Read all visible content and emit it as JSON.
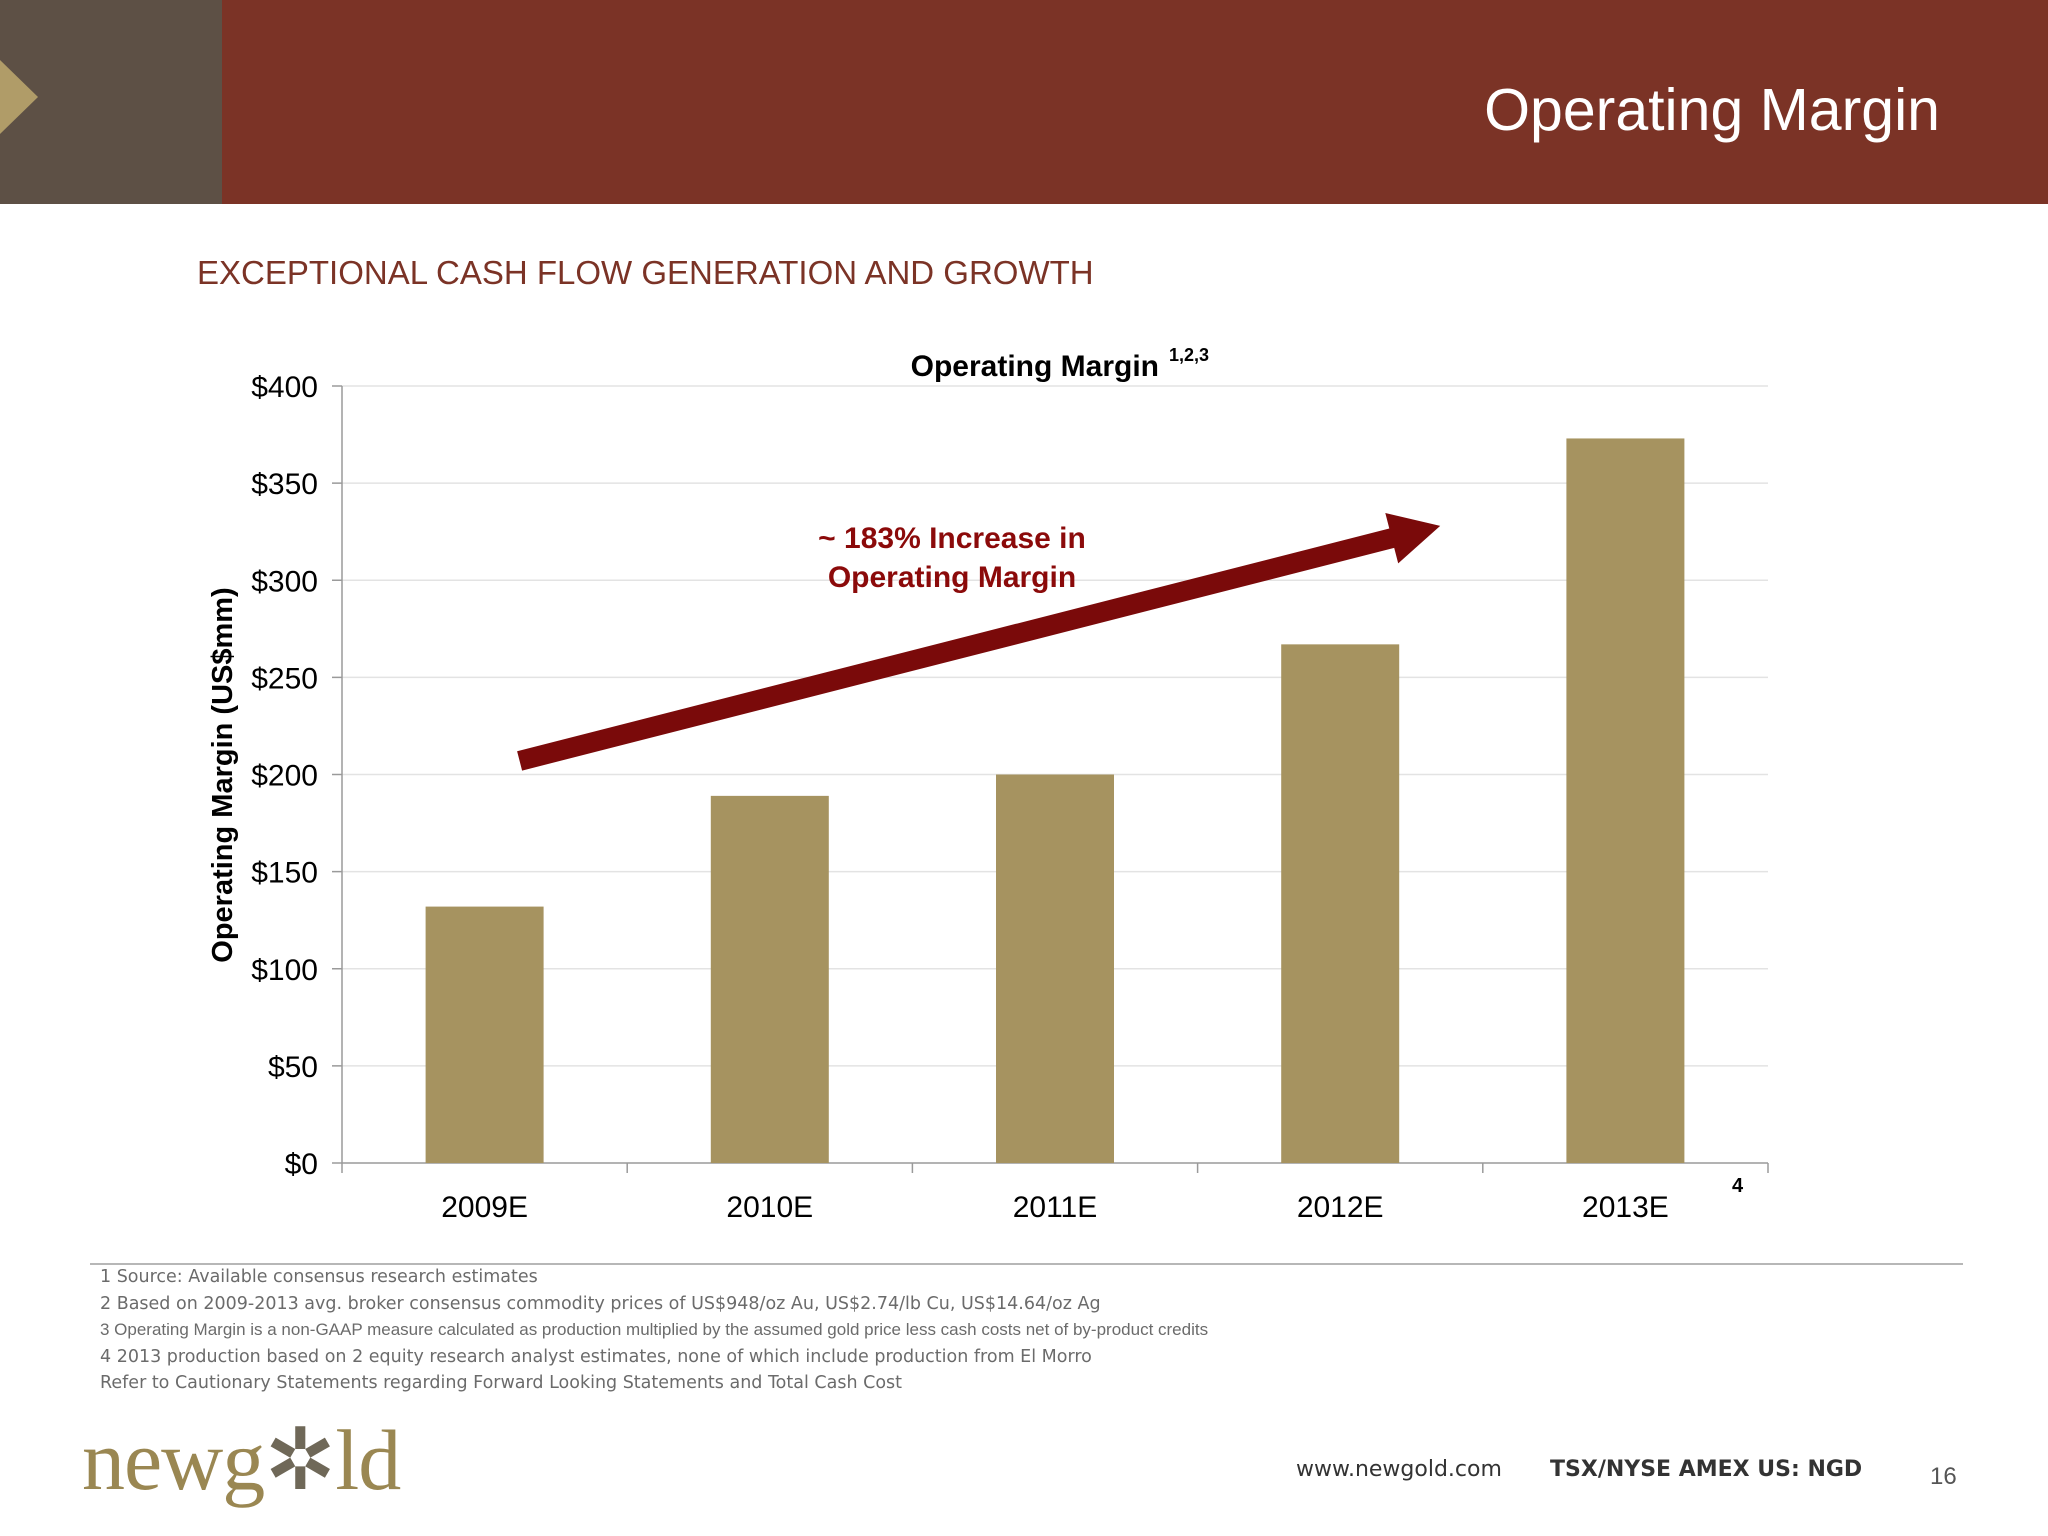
{
  "slide": {
    "title": "Operating Margin",
    "subtitle": "EXCEPTIONAL CASH FLOW GENERATION AND GROWTH",
    "page_number": "16"
  },
  "colors": {
    "header": "#7b3326",
    "header_left": "#5d5045",
    "bar": "#a69360",
    "arrow": "#7a0a0a",
    "annotation": "#8b0a0a"
  },
  "chart_data": {
    "type": "bar",
    "title": "Operating Margin",
    "title_superscript": "1,2,3",
    "ylabel": "Operating Margin (US$mm)",
    "xlabel": "",
    "ylim": [
      0,
      400
    ],
    "yticks": [
      0,
      50,
      100,
      150,
      200,
      250,
      300,
      350,
      400
    ],
    "ytick_labels": [
      "$0",
      "$50",
      "$100",
      "$150",
      "$200",
      "$250",
      "$300",
      "$350",
      "$400"
    ],
    "categories": [
      "2009E",
      "2010E",
      "2011E",
      "2012E",
      "2013E"
    ],
    "values": [
      132,
      189,
      200,
      267,
      373
    ],
    "last_category_superscript": "4",
    "grid": true,
    "legend": "none",
    "annotation": {
      "line1": "~ 183% Increase in",
      "line2": "Operating Margin",
      "arrow_from": {
        "category": "2009E",
        "value": 207
      },
      "arrow_to": {
        "category": "2012E",
        "value": 328
      }
    }
  },
  "footnotes": [
    "1  Source: Available consensus research estimates",
    "2  Based on 2009-2013 avg. broker consensus commodity prices of US$948/oz Au, US$2.74/lb Cu, US$14.64/oz Ag",
    "3  Operating Margin is a non-GAAP measure calculated as production multiplied by the assumed gold price less cash costs net of by-product credits",
    "4  2013 production based on 2 equity research analyst estimates, none of which include production from El Morro",
    "Refer to Cautionary Statements regarding Forward Looking Statements and Total Cash Cost"
  ],
  "footer": {
    "logo_text_a": "newg",
    "logo_text_b": "✲",
    "logo_text_c": "ld",
    "website": "www.newgold.com",
    "ticker": "TSX/NYSE AMEX US: NGD"
  }
}
